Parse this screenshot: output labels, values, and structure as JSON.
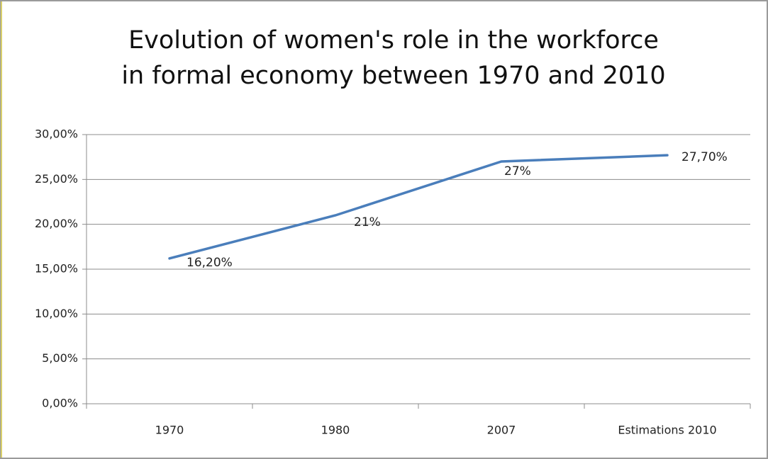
{
  "chart_data": {
    "type": "line",
    "title": [
      "Evolution of women's role in the workforce",
      "in formal economy between 1970 and 2010"
    ],
    "categories": [
      "1970",
      "1980",
      "2007",
      "Estimations 2010"
    ],
    "series": [
      {
        "color": "#4a7ebb",
        "values": [
          16.2,
          21,
          27,
          27.7
        ],
        "value_labels": [
          "16,20%",
          "21%",
          "27%",
          "27,70%"
        ]
      }
    ],
    "ylim": [
      0,
      30
    ],
    "yticks": [
      {
        "value": 0,
        "label": "0,00%"
      },
      {
        "value": 5,
        "label": "5,00%"
      },
      {
        "value": 10,
        "label": "10,00%"
      },
      {
        "value": 15,
        "label": "15,00%"
      },
      {
        "value": 20,
        "label": "20,00%"
      },
      {
        "value": 25,
        "label": "25,00%"
      },
      {
        "value": 30,
        "label": "30,00%"
      }
    ],
    "grid": true
  }
}
